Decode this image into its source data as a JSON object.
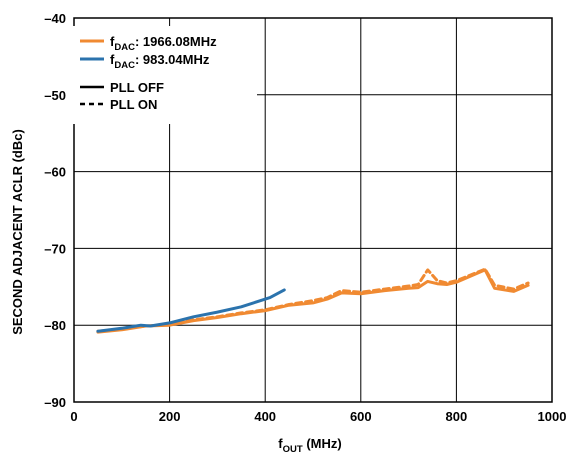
{
  "chart_data": {
    "type": "line",
    "xlabel": {
      "main": "f",
      "sub": "OUT",
      "rest": " (MHz)"
    },
    "ylabel": "SECOND ADJACENT ACLR (dBc)",
    "xlim": [
      0,
      1000
    ],
    "ylim": [
      -90,
      -40
    ],
    "xticks": [
      0,
      200,
      400,
      600,
      800,
      1000
    ],
    "yticks": [
      -90,
      -80,
      -70,
      -60,
      -50,
      -40
    ],
    "xtick_labels": [
      "0",
      "200",
      "400",
      "600",
      "800",
      "1000"
    ],
    "ytick_labels": [
      "–90",
      "–80",
      "–70",
      "–60",
      "–50",
      "–40"
    ],
    "grid": true,
    "legend": {
      "placement": "top-left",
      "color_entries": [
        {
          "main": "f",
          "sub": "DAC",
          "rest": ": 1966.08MHz",
          "color": "#f08a32"
        },
        {
          "main": "f",
          "sub": "DAC",
          "rest": ": 983.04MHz",
          "color": "#2b73ad"
        }
      ],
      "style_entries": [
        {
          "label": "PLL OFF",
          "dash": "solid"
        },
        {
          "label": "PLL ON",
          "dash": "dashed"
        }
      ]
    },
    "series": [
      {
        "fdac": "1966.08MHz",
        "pll": "OFF",
        "color": "#f08a32",
        "dash": "solid",
        "x": [
          50,
          100,
          150,
          200,
          250,
          300,
          350,
          400,
          450,
          500,
          530,
          560,
          600,
          650,
          700,
          720,
          740,
          760,
          780,
          800,
          860,
          880,
          920,
          950
        ],
        "y": [
          -80.9,
          -80.6,
          -80.1,
          -80.0,
          -79.4,
          -79.0,
          -78.5,
          -78.1,
          -77.4,
          -77.1,
          -76.6,
          -75.8,
          -75.9,
          -75.5,
          -75.2,
          -75.1,
          -74.3,
          -74.6,
          -74.7,
          -74.4,
          -72.8,
          -75.2,
          -75.6,
          -74.8
        ]
      },
      {
        "fdac": "1966.08MHz",
        "pll": "ON",
        "color": "#f08a32",
        "dash": "dashed",
        "x": [
          50,
          100,
          150,
          200,
          250,
          300,
          350,
          400,
          450,
          500,
          530,
          560,
          600,
          650,
          700,
          720,
          740,
          760,
          780,
          800,
          860,
          880,
          920,
          950
        ],
        "y": [
          -80.8,
          -80.5,
          -80.1,
          -79.9,
          -79.3,
          -78.9,
          -78.4,
          -78.0,
          -77.3,
          -76.8,
          -76.4,
          -75.5,
          -75.7,
          -75.3,
          -74.9,
          -74.7,
          -72.8,
          -74.2,
          -74.5,
          -74.2,
          -72.7,
          -74.8,
          -75.3,
          -74.5
        ]
      },
      {
        "fdac": "983.04MHz",
        "pll": "OFF",
        "color": "#2b73ad",
        "dash": "solid",
        "x": [
          50,
          100,
          140,
          160,
          200,
          250,
          300,
          350,
          380,
          410,
          440
        ],
        "y": [
          -80.8,
          -80.4,
          -80.0,
          -80.1,
          -79.7,
          -78.9,
          -78.3,
          -77.6,
          -77.0,
          -76.4,
          -75.4
        ]
      }
    ]
  }
}
